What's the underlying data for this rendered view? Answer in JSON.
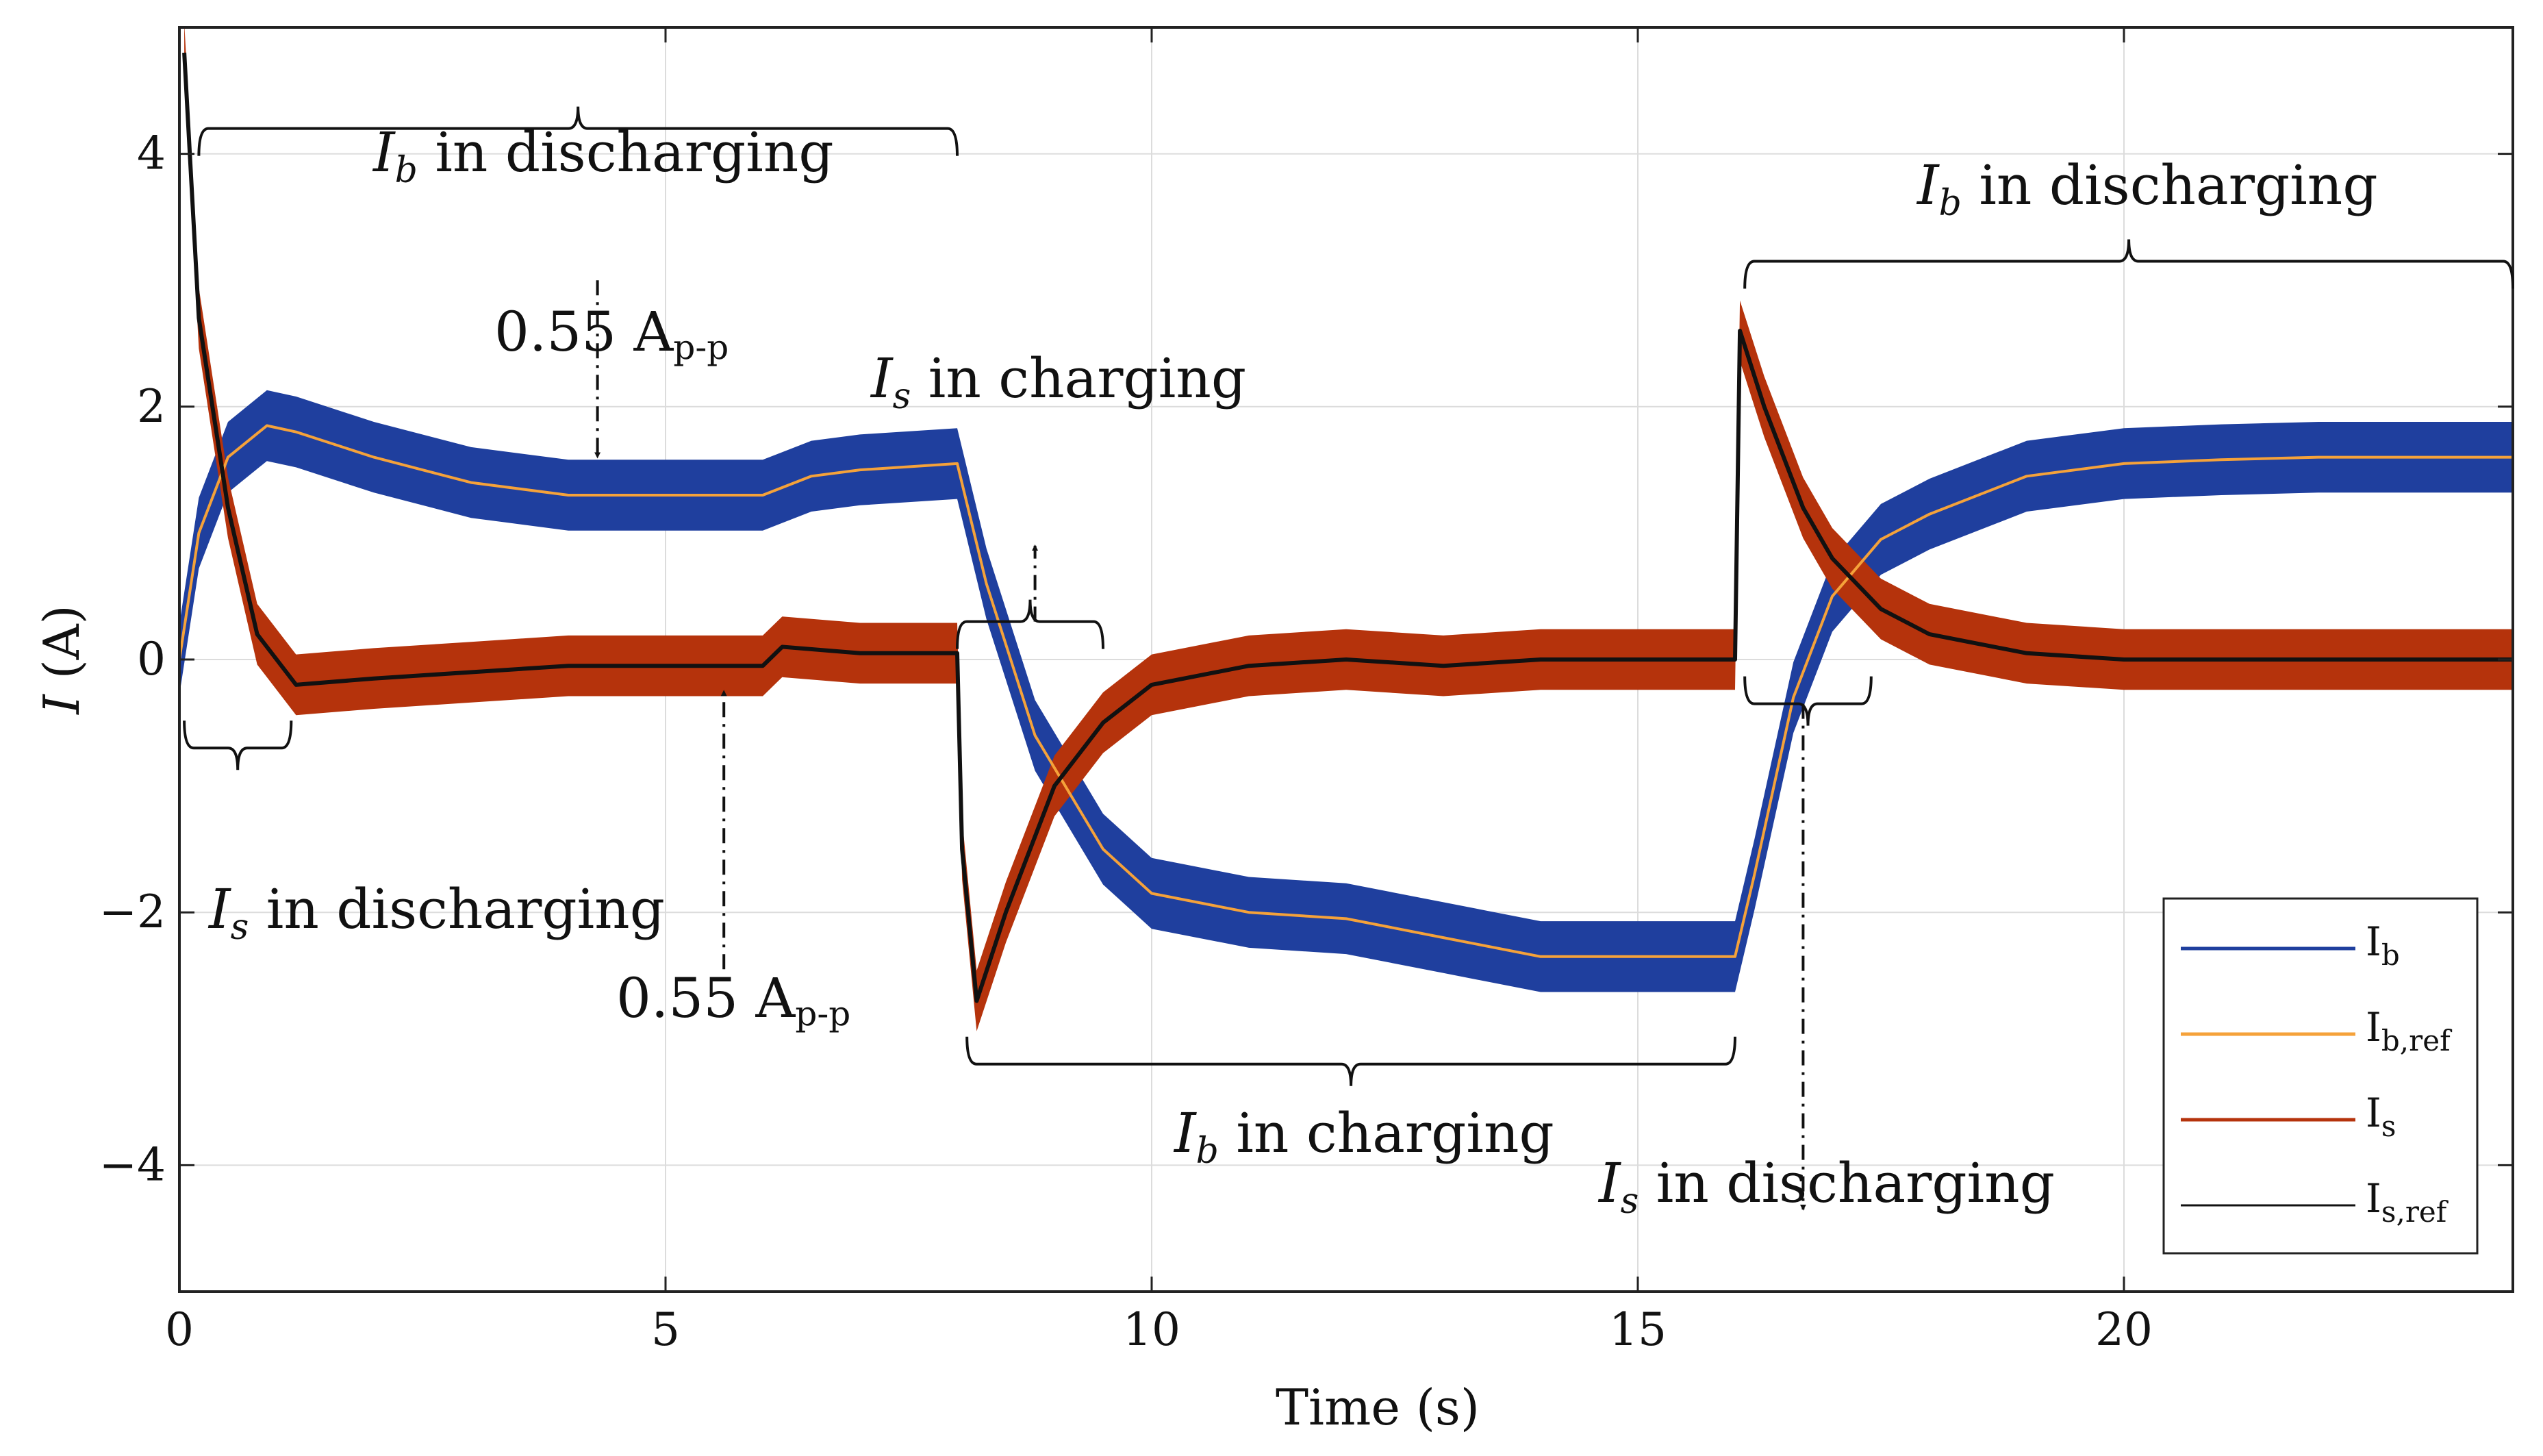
{
  "chart_data": {
    "type": "line",
    "xlabel": "Time (s)",
    "ylabel_symbol": "I",
    "ylabel_unit": "(A)",
    "xlim": [
      0,
      24
    ],
    "ylim": [
      -5,
      5
    ],
    "grid": true,
    "xticks": [
      0,
      5,
      10,
      15,
      20
    ],
    "yticks": [
      -4,
      -2,
      0,
      2,
      4
    ],
    "tick_labels_x": [
      "0",
      "5",
      "10",
      "15",
      "20"
    ],
    "tick_labels_y": [
      "−4",
      "−2",
      "0",
      "2",
      "4"
    ],
    "series": [
      {
        "name": "I_b",
        "color": "#1f3f9e",
        "band_half_width": 0.28,
        "x": [
          0,
          0.2,
          0.5,
          0.9,
          1.2,
          2,
          3,
          4,
          5,
          6,
          6.5,
          7,
          8,
          8.3,
          8.8,
          9.5,
          10,
          11,
          12,
          13,
          14,
          15,
          16,
          16.2,
          16.6,
          17,
          17.5,
          18,
          19,
          20,
          21,
          22,
          23,
          24
        ],
        "y": [
          0,
          1.0,
          1.6,
          1.85,
          1.8,
          1.6,
          1.4,
          1.3,
          1.3,
          1.3,
          1.45,
          1.5,
          1.55,
          0.6,
          -0.6,
          -1.5,
          -1.85,
          -2.0,
          -2.05,
          -2.2,
          -2.35,
          -2.35,
          -2.35,
          -1.7,
          -0.3,
          0.5,
          0.95,
          1.15,
          1.45,
          1.55,
          1.58,
          1.6,
          1.6,
          1.6
        ]
      },
      {
        "name": "I_b,ref",
        "color": "#f5a23a",
        "x": [
          0,
          0.2,
          0.5,
          0.9,
          1.2,
          2,
          3,
          4,
          5,
          6,
          6.5,
          7,
          8,
          8.3,
          8.8,
          9.5,
          10,
          11,
          12,
          13,
          14,
          15,
          16,
          16.2,
          16.6,
          17,
          17.5,
          18,
          19,
          20,
          21,
          22,
          23,
          24
        ],
        "y": [
          0,
          1.0,
          1.6,
          1.85,
          1.8,
          1.6,
          1.4,
          1.3,
          1.3,
          1.3,
          1.45,
          1.5,
          1.55,
          0.6,
          -0.6,
          -1.5,
          -1.85,
          -2.0,
          -2.05,
          -2.2,
          -2.35,
          -2.35,
          -2.35,
          -1.7,
          -0.3,
          0.5,
          0.95,
          1.15,
          1.45,
          1.55,
          1.58,
          1.6,
          1.6,
          1.6
        ]
      },
      {
        "name": "I_s",
        "color": "#b5330c",
        "band_half_width": 0.24,
        "x": [
          0.05,
          0.2,
          0.5,
          0.8,
          1.2,
          2,
          3,
          4,
          5,
          6,
          6.2,
          7,
          8,
          8.05,
          8.2,
          8.5,
          9,
          9.5,
          10,
          11,
          12,
          13,
          14,
          15,
          16,
          16.05,
          16.3,
          16.7,
          17,
          17.5,
          18,
          19,
          20,
          21,
          22,
          24
        ],
        "y": [
          4.8,
          2.7,
          1.2,
          0.2,
          -0.2,
          -0.15,
          -0.1,
          -0.05,
          -0.05,
          -0.05,
          0.1,
          0.05,
          0.05,
          -1.5,
          -2.7,
          -2.0,
          -1.0,
          -0.5,
          -0.2,
          -0.05,
          0.0,
          -0.05,
          0.0,
          0.0,
          0.0,
          2.6,
          2.0,
          1.2,
          0.8,
          0.4,
          0.2,
          0.05,
          0.0,
          0.0,
          0.0,
          0.0
        ]
      },
      {
        "name": "I_s,ref",
        "color": "#111111",
        "x": [
          0.05,
          0.2,
          0.5,
          0.8,
          1.2,
          2,
          3,
          4,
          5,
          6,
          6.2,
          7,
          8,
          8.05,
          8.2,
          8.5,
          9,
          9.5,
          10,
          11,
          12,
          13,
          14,
          15,
          16,
          16.05,
          16.3,
          16.7,
          17,
          17.5,
          18,
          19,
          20,
          21,
          22,
          24
        ],
        "y": [
          4.8,
          2.7,
          1.2,
          0.2,
          -0.2,
          -0.15,
          -0.1,
          -0.05,
          -0.05,
          -0.05,
          0.1,
          0.05,
          0.05,
          -1.5,
          -2.7,
          -2.0,
          -1.0,
          -0.5,
          -0.2,
          -0.05,
          0.0,
          -0.05,
          0.0,
          0.0,
          0.0,
          2.6,
          2.0,
          1.2,
          0.8,
          0.4,
          0.2,
          0.05,
          0.0,
          0.0,
          0.0,
          0.0
        ]
      }
    ],
    "legend": {
      "placement": "bottom-right",
      "entries": [
        {
          "main": "I",
          "sub": "b",
          "color": "#1f3f9e"
        },
        {
          "main": "I",
          "sub": "b,ref",
          "color": "#f5a23a"
        },
        {
          "main": "I",
          "sub": "s",
          "color": "#b5330c"
        },
        {
          "main": "I",
          "sub": "s,ref",
          "color": "#111111"
        }
      ]
    },
    "annotations": {
      "ib_discharging_1": {
        "sym": "I",
        "sub": "b",
        "text": " in discharging"
      },
      "ib_discharging_2": {
        "sym": "I",
        "sub": "b",
        "text": " in discharging"
      },
      "ib_charging": {
        "sym": "I",
        "sub": "b",
        "text": " in charging"
      },
      "is_charging": {
        "sym": "I",
        "sub": "s",
        "text": " in charging"
      },
      "is_discharging_1": {
        "sym": "I",
        "sub": "s",
        "text": " in discharging"
      },
      "is_discharging_2": {
        "sym": "I",
        "sub": "s",
        "text": " in discharging"
      },
      "ripple_upper": {
        "value": "0.55 A",
        "sub": "p-p"
      },
      "ripple_lower": {
        "value": "0.55 A",
        "sub": "p-p"
      }
    },
    "brackets": [
      {
        "id": "ib-discharging-1",
        "x0": 0.2,
        "x1": 8.0,
        "y": 4.2,
        "direction": "down"
      },
      {
        "id": "ib-discharging-2",
        "x0": 16.1,
        "x1": 24.0,
        "y": 3.15,
        "direction": "down"
      },
      {
        "id": "ib-charging",
        "x0": 8.1,
        "x1": 16.0,
        "y": -3.2,
        "direction": "up"
      },
      {
        "id": "is-charging",
        "x0": 8.0,
        "x1": 9.5,
        "y": 0.3,
        "direction": "down"
      },
      {
        "id": "is-discharging-1",
        "x0": 0.05,
        "x1": 1.15,
        "y": -0.7,
        "direction": "up"
      },
      {
        "id": "is-discharging-2",
        "x0": 16.1,
        "x1": 17.4,
        "y": -0.35,
        "direction": "up"
      }
    ],
    "arrows": [
      {
        "id": "ripple-upper-arrow",
        "x0": 4.3,
        "y0": 3.0,
        "x1": 4.3,
        "y1": 1.6
      },
      {
        "id": "ripple-lower-arrow",
        "x0": 5.6,
        "y0": -2.45,
        "x1": 5.6,
        "y1": -0.25
      },
      {
        "id": "is-charging-arrow",
        "x0": 8.8,
        "y0": 0.3,
        "x1": 8.8,
        "y1": 0.9
      },
      {
        "id": "is-discharging-2-arrow",
        "x0": 16.7,
        "y0": -0.35,
        "x1": 16.7,
        "y1": -4.35
      }
    ]
  }
}
